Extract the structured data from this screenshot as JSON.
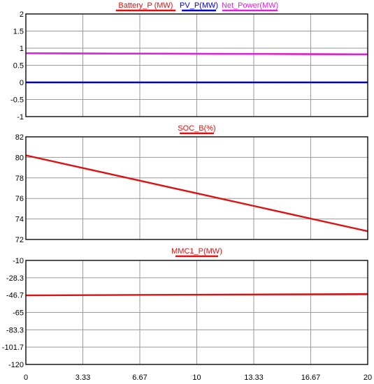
{
  "chart_data": [
    {
      "type": "line",
      "xlim": [
        0,
        20
      ],
      "ylim": [
        -1,
        2
      ],
      "yticks": [
        "2",
        "1.5",
        "1",
        "0.5",
        "0",
        "-0.5",
        "-1"
      ],
      "grid": true,
      "legend_placement": "top-center",
      "series": [
        {
          "name": "Battery_P (MW)",
          "color": "#dd1111",
          "x": [
            0,
            20
          ],
          "y": [
            0.85,
            0.82
          ]
        },
        {
          "name": "PV_P(MW)",
          "color": "#0000cc",
          "x": [
            0,
            20
          ],
          "y": [
            0,
            0
          ]
        },
        {
          "name": "Net_Power(MW)",
          "color": "#dd22dd",
          "x": [
            0,
            20
          ],
          "y": [
            0.85,
            0.82
          ]
        }
      ]
    },
    {
      "type": "line",
      "xlim": [
        0,
        20
      ],
      "ylim": [
        72,
        82
      ],
      "yticks": [
        "82",
        "80",
        "78",
        "76",
        "74",
        "72"
      ],
      "grid": true,
      "legend_placement": "top-center",
      "series": [
        {
          "name": "SOC_B(%)",
          "color": "#dd1111",
          "x": [
            0,
            20
          ],
          "y": [
            80.2,
            72.8
          ]
        }
      ]
    },
    {
      "type": "line",
      "xlim": [
        0,
        20
      ],
      "ylim": [
        -120,
        -10
      ],
      "yticks": [
        "-10",
        "-28.3",
        "-46.7",
        "-65",
        "-83.3",
        "-101.7",
        "-120"
      ],
      "xticks": [
        "0",
        "3.33",
        "6.67",
        "10",
        "13.33",
        "16.67",
        "20"
      ],
      "grid": true,
      "legend_placement": "top-center",
      "series": [
        {
          "name": "MMC1_P(MW)",
          "color": "#dd1111",
          "x": [
            0,
            20
          ],
          "y": [
            -47.0,
            -45.5
          ]
        }
      ]
    }
  ]
}
